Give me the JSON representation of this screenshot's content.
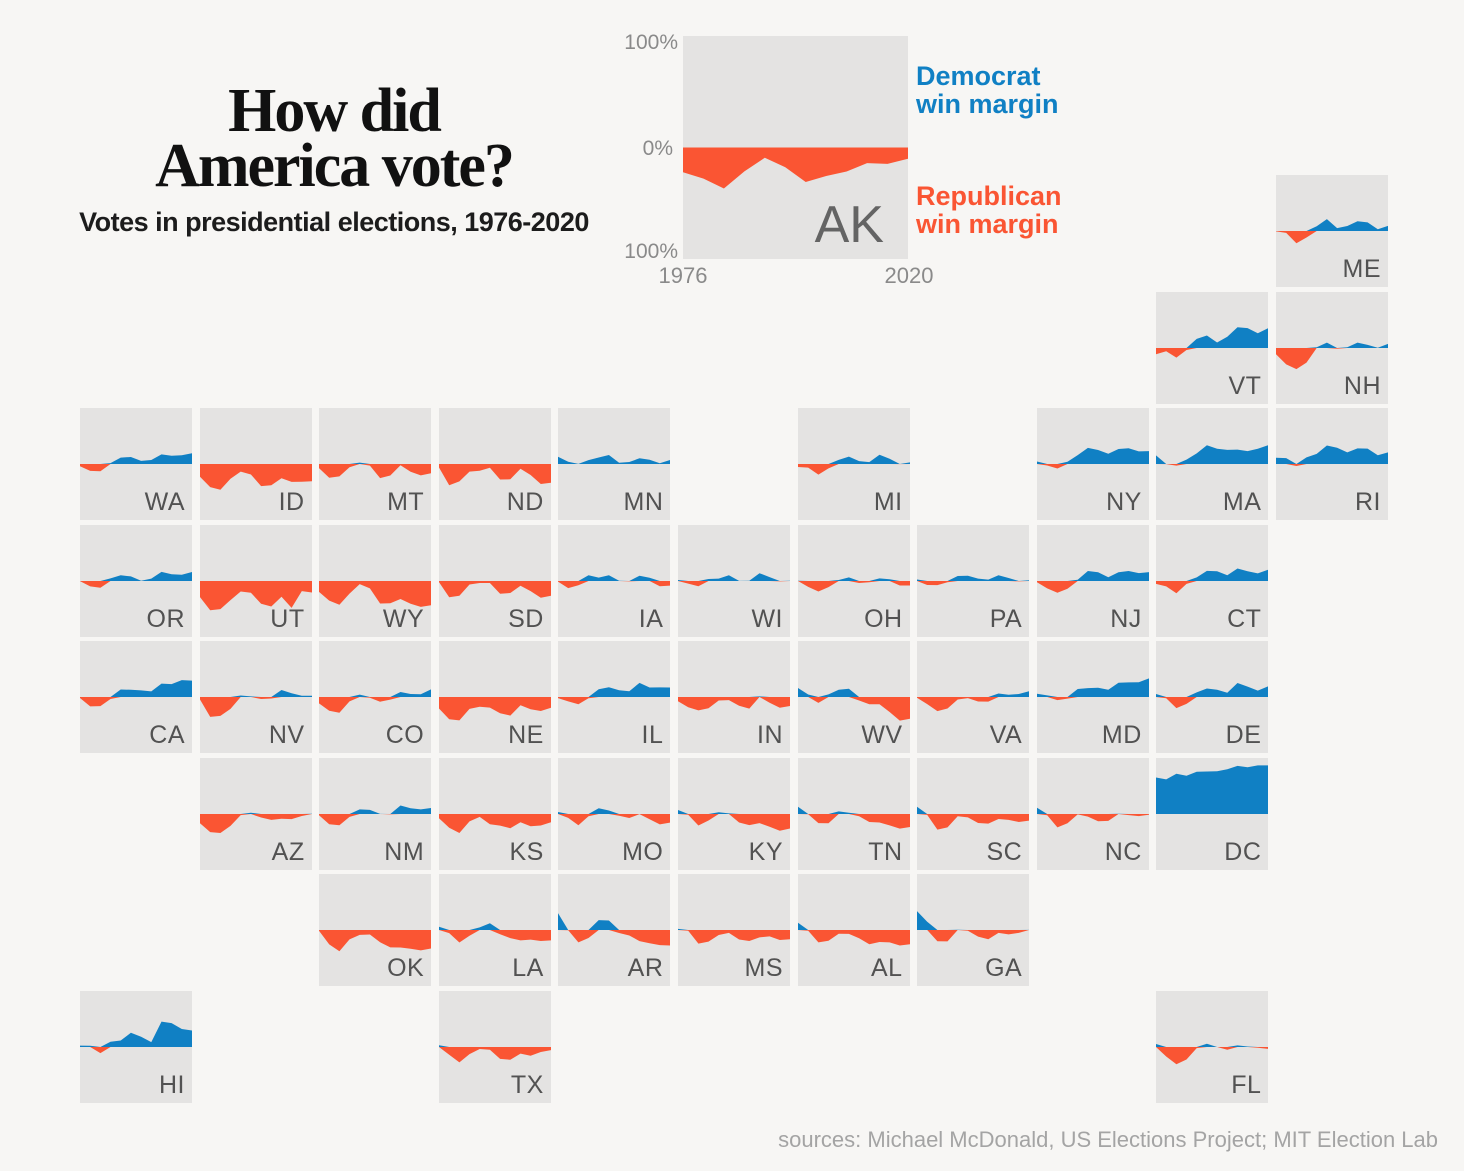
{
  "page": {
    "source": "sources: Michael McDonald, US Elections Project; MIT Election Lab"
  },
  "header": {
    "title_line1": "How did",
    "title_line2": "America vote?",
    "subtitle": "Votes in presidential elections, 1976-2020"
  },
  "feature": {
    "state": "AK",
    "axis": {
      "top": "100%",
      "zero": "0%",
      "bottom": "100%",
      "x_start": "1976",
      "x_end": "2020"
    },
    "legend": {
      "democrat": [
        "Democrat",
        "win margin"
      ],
      "republican": [
        "Republican",
        "win margin"
      ]
    }
  },
  "colors": {
    "democrat": "#1080c4",
    "republican": "#fa5533",
    "tile_bg": "#e4e3e2",
    "page_bg": "#f7f6f4",
    "state_label": "#525252",
    "feature_label": "#646464",
    "axis_label": "#8a8a8a",
    "source_text": "#a4a4a4",
    "title_text": "#111111"
  },
  "chart_data": {
    "type": "area",
    "description": "Small-multiple area charts arranged as a US state tile map. Value = Democrat minus Republican presidential vote margin in percentage points for each election 1976-2020. Positive (blue) = Democrat win margin, negative (orange) = Republican win margin.",
    "x_years": [
      1976,
      1980,
      1984,
      1988,
      1992,
      1996,
      2000,
      2004,
      2008,
      2012,
      2016,
      2020
    ],
    "ylim": [
      -100,
      100
    ],
    "grid": {
      "note": "col/row give tile-map grid coordinates, col 0 = west, row 0 = north"
    },
    "feature_series": {
      "state": "AK",
      "values": [
        -22.2,
        -27.9,
        -36.8,
        -21.4,
        -9.2,
        -17.7,
        -30.9,
        -25.6,
        -21.5,
        -14.0,
        -14.7,
        -10.1
      ]
    },
    "series": [
      {
        "state": "ME",
        "col": 10,
        "row": 0,
        "values": [
          -0.8,
          -3.4,
          -22.0,
          -11.6,
          8.4,
          21.3,
          5.1,
          9.0,
          17.3,
          15.3,
          3.0,
          9.1
        ]
      },
      {
        "state": "VT",
        "col": 9,
        "row": 1,
        "values": [
          -11.2,
          -5.9,
          -17.1,
          -3.5,
          16.3,
          22.3,
          9.9,
          20.1,
          37.0,
          35.6,
          26.4,
          35.4
        ]
      },
      {
        "state": "NH",
        "col": 10,
        "row": 1,
        "values": [
          -11.1,
          -29.3,
          -37.7,
          -26.1,
          1.3,
          9.7,
          -1.3,
          1.4,
          9.6,
          5.6,
          0.4,
          7.4
        ]
      },
      {
        "state": "WA",
        "col": 0,
        "row": 2,
        "values": [
          -3.9,
          -12.4,
          -12.9,
          1.6,
          11.4,
          12.5,
          5.6,
          7.2,
          17.1,
          14.9,
          15.7,
          19.2
        ]
      },
      {
        "state": "ID",
        "col": 1,
        "row": 2,
        "values": [
          -22.6,
          -41.3,
          -46.0,
          -26.2,
          -13.6,
          -18.8,
          -39.5,
          -38.1,
          -25.3,
          -31.9,
          -31.8,
          -30.8
        ]
      },
      {
        "state": "MT",
        "col": 2,
        "row": 2,
        "values": [
          -7.4,
          -24.5,
          -22.1,
          -5.9,
          2.5,
          -2.9,
          -25.1,
          -20.5,
          -2.2,
          -13.7,
          -20.4,
          -16.4
        ]
      },
      {
        "state": "ND",
        "col": 3,
        "row": 2,
        "values": [
          -6.2,
          -37.9,
          -31.0,
          -13.5,
          -12.1,
          -6.8,
          -27.6,
          -27.4,
          -8.6,
          -19.6,
          -35.7,
          -33.4
        ]
      },
      {
        "state": "MN",
        "col": 4,
        "row": 2,
        "values": [
          12.8,
          3.9,
          0.2,
          7.0,
          11.6,
          16.1,
          2.4,
          3.5,
          10.2,
          7.7,
          1.5,
          7.1
        ]
      },
      {
        "state": "MI",
        "col": 6,
        "row": 2,
        "values": [
          -5.4,
          -6.5,
          -19.0,
          -7.9,
          7.4,
          13.2,
          5.1,
          3.4,
          16.4,
          9.5,
          -0.2,
          2.8
        ]
      },
      {
        "state": "NY",
        "col": 8,
        "row": 2,
        "values": [
          4.4,
          -2.7,
          -8.0,
          4.1,
          15.9,
          28.8,
          25.0,
          18.3,
          26.7,
          28.2,
          22.5,
          23.1
        ]
      },
      {
        "state": "MA",
        "col": 9,
        "row": 2,
        "values": [
          15.4,
          -0.2,
          -2.8,
          7.8,
          18.9,
          33.4,
          27.3,
          25.2,
          25.8,
          23.1,
          27.2,
          33.5
        ]
      },
      {
        "state": "RI",
        "col": 10,
        "row": 2,
        "values": [
          11.3,
          10.5,
          -3.6,
          11.7,
          18.1,
          33.0,
          29.1,
          20.8,
          27.8,
          27.5,
          15.5,
          20.8
        ]
      },
      {
        "state": "OR",
        "col": 0,
        "row": 3,
        "values": [
          -0.2,
          -9.7,
          -12.1,
          4.7,
          10.1,
          8.3,
          0.4,
          4.2,
          16.3,
          12.1,
          11.0,
          16.1
        ]
      },
      {
        "state": "UT",
        "col": 1,
        "row": 3,
        "values": [
          -28.8,
          -52.1,
          -50.1,
          -34.1,
          -18.8,
          -21.1,
          -40.5,
          -45.5,
          -28.1,
          -48.0,
          -18.1,
          -20.5
        ]
      },
      {
        "state": "WY",
        "col": 2,
        "row": 3,
        "values": [
          -19.5,
          -35.0,
          -42.3,
          -22.5,
          -5.6,
          -13.2,
          -40.1,
          -39.8,
          -32.2,
          -40.8,
          -46.3,
          -43.4
        ]
      },
      {
        "state": "SD",
        "col": 3,
        "row": 3,
        "values": [
          -1.9,
          -28.9,
          -26.5,
          -6.2,
          -3.5,
          -3.5,
          -22.7,
          -21.5,
          -8.4,
          -18.0,
          -29.8,
          -26.2
        ]
      },
      {
        "state": "IA",
        "col": 4,
        "row": 3,
        "values": [
          -1.1,
          -12.6,
          -7.5,
          10.2,
          6.0,
          10.3,
          0.3,
          -0.7,
          9.5,
          5.8,
          -9.4,
          -8.2
        ]
      },
      {
        "state": "WI",
        "col": 5,
        "row": 3,
        "values": [
          1.7,
          -4.7,
          -9.2,
          3.6,
          4.3,
          10.3,
          0.2,
          0.4,
          13.9,
          6.9,
          -0.8,
          0.6
        ]
      },
      {
        "state": "OH",
        "col": 6,
        "row": 3,
        "values": [
          0.3,
          -10.6,
          -18.8,
          -10.9,
          1.8,
          6.4,
          -3.5,
          -2.1,
          4.6,
          3.0,
          -8.1,
          -8.0
        ]
      },
      {
        "state": "PA",
        "col": 7,
        "row": 3,
        "values": [
          2.7,
          -7.1,
          -7.4,
          -2.3,
          9.0,
          9.2,
          4.2,
          2.5,
          10.3,
          5.4,
          -0.7,
          1.2
        ]
      },
      {
        "state": "NJ",
        "col": 8,
        "row": 3,
        "values": [
          -2.2,
          -13.3,
          -20.9,
          -13.7,
          2.4,
          17.9,
          15.8,
          6.7,
          15.5,
          17.8,
          14.1,
          15.9
        ]
      },
      {
        "state": "CT",
        "col": 9,
        "row": 3,
        "values": [
          -5.2,
          -9.6,
          -21.9,
          -5.1,
          6.4,
          18.1,
          17.5,
          10.4,
          22.4,
          17.3,
          13.6,
          20.1
        ]
      },
      {
        "state": "CA",
        "col": 0,
        "row": 4,
        "values": [
          -1.8,
          -16.8,
          -16.2,
          -3.6,
          13.4,
          12.9,
          11.8,
          10.0,
          24.0,
          23.1,
          30.1,
          29.2
        ]
      },
      {
        "state": "NV",
        "col": 1,
        "row": 4,
        "values": [
          -4.5,
          -35.6,
          -33.8,
          -21.2,
          2.6,
          1.0,
          -3.5,
          -2.6,
          12.5,
          6.7,
          2.4,
          2.4
        ]
      },
      {
        "state": "CO",
        "col": 2,
        "row": 4,
        "values": [
          -11.5,
          -24.4,
          -28.1,
          -7.8,
          4.3,
          -1.4,
          -8.4,
          -4.7,
          9.0,
          5.4,
          4.9,
          13.5
        ]
      },
      {
        "state": "NE",
        "col": 3,
        "row": 4,
        "values": [
          -20.6,
          -39.6,
          -41.8,
          -21.3,
          -17.4,
          -18.9,
          -29.0,
          -33.2,
          -14.9,
          -21.8,
          -25.0,
          -19.1
        ]
      },
      {
        "state": "IL",
        "col": 4,
        "row": 4,
        "values": [
          -1.9,
          -7.9,
          -13.0,
          -2.1,
          14.0,
          17.5,
          12.0,
          10.3,
          25.1,
          16.9,
          17.1,
          17.0
        ]
      },
      {
        "state": "IN",
        "col": 5,
        "row": 4,
        "values": [
          -7.5,
          -18.2,
          -24.0,
          -20.1,
          -6.2,
          -5.6,
          -15.7,
          -20.7,
          1.0,
          -10.2,
          -19.2,
          -16.1
        ]
      },
      {
        "state": "WV",
        "col": 6,
        "row": 4,
        "values": [
          16.1,
          4.5,
          -10.5,
          4.7,
          13.0,
          14.8,
          -6.3,
          -12.9,
          -13.1,
          -26.8,
          -42.2,
          -38.9
        ]
      },
      {
        "state": "VA",
        "col": 7,
        "row": 4,
        "values": [
          -1.3,
          -12.7,
          -25.2,
          -20.5,
          -4.4,
          -2.0,
          -8.0,
          -8.2,
          6.3,
          3.9,
          5.3,
          10.1
        ]
      },
      {
        "state": "MD",
        "col": 8,
        "row": 4,
        "values": [
          5.8,
          2.9,
          -5.5,
          -2.9,
          14.3,
          15.9,
          16.4,
          13.0,
          25.4,
          26.1,
          26.4,
          33.2
        ]
      },
      {
        "state": "DE",
        "col": 9,
        "row": 4,
        "values": [
          5.3,
          -2.3,
          -19.9,
          -12.4,
          8.2,
          15.2,
          13.1,
          7.6,
          25.0,
          18.6,
          11.4,
          19.0
        ]
      },
      {
        "state": "AZ",
        "col": 1,
        "row": 5,
        "values": [
          -16.6,
          -32.4,
          -33.9,
          -21.2,
          -2.0,
          2.2,
          -6.3,
          -10.5,
          -8.5,
          -9.1,
          -3.5,
          0.3
        ]
      },
      {
        "state": "NM",
        "col": 2,
        "row": 5,
        "values": [
          -2.4,
          -18.2,
          -20.1,
          -5.1,
          8.3,
          7.3,
          0.1,
          -0.8,
          15.1,
          10.1,
          8.2,
          10.8
        ]
      },
      {
        "state": "KS",
        "col": 3,
        "row": 5,
        "values": [
          -7.7,
          -24.6,
          -33.9,
          -13.3,
          -5.2,
          -18.2,
          -20.8,
          -25.4,
          -14.9,
          -21.7,
          -20.6,
          -14.6
        ]
      },
      {
        "state": "MO",
        "col": 4,
        "row": 5,
        "values": [
          3.6,
          -6.9,
          -20.0,
          -3.9,
          10.1,
          6.3,
          -3.3,
          -7.2,
          -0.1,
          -9.4,
          -18.6,
          -15.4
        ]
      },
      {
        "state": "KY",
        "col": 5,
        "row": 5,
        "values": [
          7.2,
          -1.5,
          -20.6,
          -11.6,
          3.2,
          1.0,
          -15.1,
          -19.9,
          -16.2,
          -22.7,
          -29.8,
          -25.9
        ]
      },
      {
        "state": "TN",
        "col": 6,
        "row": 5,
        "values": [
          13.0,
          -0.3,
          -16.3,
          -16.4,
          4.7,
          2.4,
          -3.9,
          -14.3,
          -15.1,
          -20.4,
          -26.0,
          -23.2
        ]
      },
      {
        "state": "SC",
        "col": 7,
        "row": 5,
        "values": [
          13.1,
          -1.6,
          -27.9,
          -24.0,
          -3.9,
          -6.1,
          -16.0,
          -17.1,
          -9.0,
          -10.5,
          -14.3,
          -11.7
        ]
      },
      {
        "state": "NC",
        "col": 8,
        "row": 5,
        "values": [
          11.1,
          -2.1,
          -23.9,
          -16.4,
          -0.8,
          -4.7,
          -12.8,
          -12.4,
          0.3,
          -2.0,
          -3.7,
          -1.3
        ]
      },
      {
        "state": "DC",
        "col": 9,
        "row": 5,
        "values": [
          65.1,
          61.7,
          71.7,
          68.3,
          75.5,
          75.9,
          76.2,
          79.8,
          85.9,
          83.6,
          86.8,
          86.7
        ]
      },
      {
        "state": "OK",
        "col": 2,
        "row": 6,
        "values": [
          -1.2,
          -25.7,
          -38.0,
          -16.8,
          -8.7,
          -8.0,
          -21.9,
          -31.1,
          -31.3,
          -33.5,
          -36.4,
          -33.1
        ]
      },
      {
        "state": "LA",
        "col": 3,
        "row": 6,
        "values": [
          5.8,
          -5.6,
          -22.3,
          -10.2,
          4.6,
          12.1,
          -7.7,
          -14.5,
          -18.6,
          -17.2,
          -19.6,
          -18.6
        ]
      },
      {
        "state": "AR",
        "col": 4,
        "row": 6,
        "values": [
          30.1,
          -0.6,
          -22.2,
          -14.2,
          17.7,
          16.9,
          -5.4,
          -9.8,
          -19.9,
          -23.7,
          -26.9,
          -27.6
        ]
      },
      {
        "state": "MS",
        "col": 5,
        "row": 6,
        "values": [
          1.9,
          -1.3,
          -24.3,
          -20.7,
          -8.9,
          -5.1,
          -16.9,
          -19.7,
          -13.2,
          -11.5,
          -17.8,
          -16.5
        ]
      },
      {
        "state": "AL",
        "col": 6,
        "row": 6,
        "values": [
          13.1,
          -1.3,
          -22.2,
          -19.3,
          -6.7,
          -7.0,
          -14.9,
          -25.6,
          -21.5,
          -22.2,
          -27.7,
          -25.5
        ]
      },
      {
        "state": "GA",
        "col": 7,
        "row": 6,
        "values": [
          33.7,
          14.8,
          -20.1,
          -20.3,
          0.6,
          -1.2,
          -11.7,
          -16.6,
          -5.2,
          -7.8,
          -5.1,
          0.2
        ]
      },
      {
        "state": "HI",
        "col": 0,
        "row": 7,
        "values": [
          2.5,
          2.2,
          -10.9,
          9.5,
          11.6,
          25.3,
          18.3,
          8.7,
          45.3,
          42.7,
          32.2,
          29.5
        ]
      },
      {
        "state": "TX",
        "col": 3,
        "row": 7,
        "values": [
          3.2,
          -13.9,
          -27.5,
          -12.6,
          -3.5,
          -5.0,
          -21.3,
          -22.9,
          -11.8,
          -15.8,
          -9.0,
          -5.6
        ]
      },
      {
        "state": "FL",
        "col": 9,
        "row": 7,
        "values": [
          5.3,
          -17.0,
          -30.7,
          -22.4,
          -1.9,
          5.7,
          0.0,
          -5.0,
          2.8,
          0.9,
          -1.2,
          -3.4
        ]
      }
    ]
  }
}
